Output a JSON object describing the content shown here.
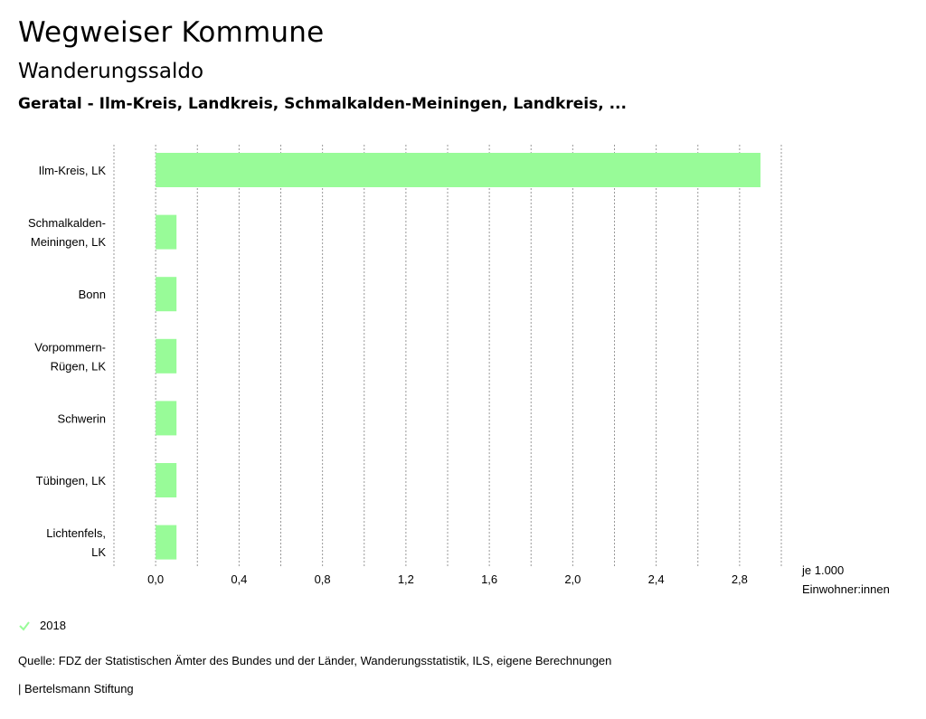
{
  "header": {
    "title": "Wegweiser Kommune",
    "subtitle": "Wanderungssaldo",
    "context": "Geratal - Ilm-Kreis, Landkreis, Schmalkalden-Meiningen, Landkreis, ..."
  },
  "chart_data": {
    "type": "bar",
    "orientation": "horizontal",
    "categories": [
      [
        "Ilm-Kreis, LK"
      ],
      [
        "Schmalkalden-",
        "Meiningen, LK"
      ],
      [
        "Bonn"
      ],
      [
        "Vorpommern-",
        "Rügen, LK"
      ],
      [
        "Schwerin"
      ],
      [
        "Tübingen, LK"
      ],
      [
        "Lichtenfels,",
        "LK"
      ]
    ],
    "series": [
      {
        "name": "2018",
        "color": "#98fb98",
        "values": [
          2.9,
          0.1,
          0.1,
          0.1,
          0.1,
          0.1,
          0.1
        ]
      }
    ],
    "xlim": [
      -0.2,
      3.0
    ],
    "xticks": [
      0.0,
      0.4,
      0.8,
      1.2,
      1.6,
      2.0,
      2.4,
      2.8
    ],
    "xtick_labels": [
      "0,0",
      "0,4",
      "0,8",
      "1,2",
      "1,6",
      "2,0",
      "2,4",
      "2,8"
    ],
    "unit_label": [
      "je 1.000",
      "Einwohner:innen"
    ],
    "grid": true
  },
  "legend": {
    "label": "2018",
    "color": "#98fb98"
  },
  "footer": {
    "source": "Quelle: FDZ der Statistischen Ämter des Bundes und der Länder, Wanderungsstatistik, ILS, eigene Berechnungen",
    "brand": "| Bertelsmann Stiftung"
  }
}
